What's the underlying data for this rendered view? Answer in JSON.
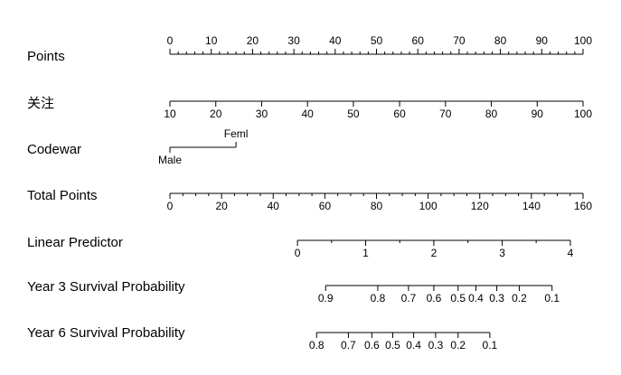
{
  "chart_data": {
    "type": "nomogram",
    "rows": [
      {
        "label": "Points",
        "scale": "points",
        "ticks": [
          {
            "label": "0",
            "points": 0
          },
          {
            "label": "10",
            "points": 10
          },
          {
            "label": "20",
            "points": 20
          },
          {
            "label": "30",
            "points": 30
          },
          {
            "label": "40",
            "points": 40
          },
          {
            "label": "50",
            "points": 50
          },
          {
            "label": "60",
            "points": 60
          },
          {
            "label": "70",
            "points": 70
          },
          {
            "label": "80",
            "points": 80
          },
          {
            "label": "90",
            "points": 90
          },
          {
            "label": "100",
            "points": 100
          }
        ],
        "minor_step": 2,
        "labels_position": "above"
      },
      {
        "label": "关注",
        "scale": "points",
        "ticks": [
          {
            "label": "10",
            "points": 0
          },
          {
            "label": "20",
            "points": 11.1
          },
          {
            "label": "30",
            "points": 22.2
          },
          {
            "label": "40",
            "points": 33.3
          },
          {
            "label": "50",
            "points": 44.4
          },
          {
            "label": "60",
            "points": 55.6
          },
          {
            "label": "70",
            "points": 66.7
          },
          {
            "label": "80",
            "points": 77.8
          },
          {
            "label": "90",
            "points": 88.9
          },
          {
            "label": "100",
            "points": 100
          }
        ],
        "labels_position": "below"
      },
      {
        "label": "Codewar",
        "scale": "points",
        "ticks": [
          {
            "label": "Male",
            "points": 0,
            "label_side": "below"
          },
          {
            "label": "Feml",
            "points": 16,
            "label_side": "above"
          }
        ],
        "labels_position": "mixed"
      },
      {
        "label": "Total Points",
        "scale": "total",
        "ticks": [
          {
            "label": "0",
            "value": 0
          },
          {
            "label": "20",
            "value": 20
          },
          {
            "label": "40",
            "value": 40
          },
          {
            "label": "60",
            "value": 60
          },
          {
            "label": "80",
            "value": 80
          },
          {
            "label": "100",
            "value": 100
          },
          {
            "label": "120",
            "value": 120
          },
          {
            "label": "140",
            "value": 140
          },
          {
            "label": "160",
            "value": 160
          }
        ],
        "minor_step": 5,
        "labels_position": "below"
      },
      {
        "label": "Linear Predictor",
        "scale": "total",
        "ticks": [
          {
            "label": "0",
            "value": 49.4
          },
          {
            "label": "1",
            "value": 75.8
          },
          {
            "label": "2",
            "value": 102.2
          },
          {
            "label": "3",
            "value": 128.7
          },
          {
            "label": "4",
            "value": 155.1
          }
        ],
        "minor_step": 0.5,
        "lp_per_total": 0.03786,
        "lp_origin_total": 49.4,
        "labels_position": "below"
      },
      {
        "label": "Year 3 Survival Probability",
        "scale": "total",
        "ticks": [
          {
            "label": "0.9",
            "value": 60.3
          },
          {
            "label": "0.8",
            "value": 80.5
          },
          {
            "label": "0.7",
            "value": 92.4
          },
          {
            "label": "0.6",
            "value": 102.2
          },
          {
            "label": "0.5",
            "value": 111.6
          },
          {
            "label": "0.4",
            "value": 118.5
          },
          {
            "label": "0.3",
            "value": 126.6
          },
          {
            "label": "0.2",
            "value": 135.3
          },
          {
            "label": "0.1",
            "value": 148.0
          }
        ],
        "labels_position": "below"
      },
      {
        "label": "Year 6 Survival Probability",
        "scale": "total",
        "ticks": [
          {
            "label": "0.8",
            "value": 56.8
          },
          {
            "label": "0.7",
            "value": 69.1
          },
          {
            "label": "0.6",
            "value": 78.2
          },
          {
            "label": "0.5",
            "value": 86.3
          },
          {
            "label": "0.4",
            "value": 94.4
          },
          {
            "label": "0.3",
            "value": 102.9
          },
          {
            "label": "0.2",
            "value": 111.6
          },
          {
            "label": "0.1",
            "value": 123.9
          }
        ],
        "labels_position": "below"
      }
    ],
    "points_range": [
      0,
      100
    ],
    "total_range": [
      0,
      160
    ]
  }
}
